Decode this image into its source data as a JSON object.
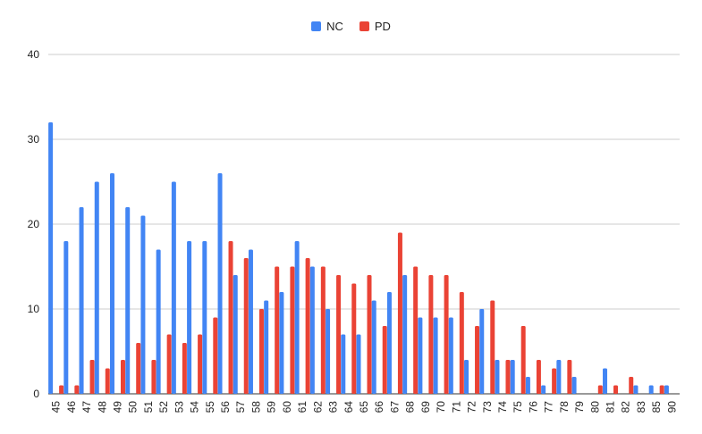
{
  "colors": {
    "NC": "#4285f4",
    "PD": "#ea4335",
    "grid": "#cccccc",
    "text": "#222222"
  },
  "chart_data": {
    "type": "bar",
    "title": "",
    "xlabel": "",
    "ylabel": "",
    "ylim": [
      0,
      40
    ],
    "yticks": [
      0,
      10,
      20,
      30,
      40
    ],
    "grid": true,
    "legend_position": "top-center",
    "categories": [
      "45",
      "46",
      "47",
      "48",
      "49",
      "50",
      "51",
      "52",
      "53",
      "54",
      "55",
      "56",
      "57",
      "58",
      "59",
      "60",
      "61",
      "62",
      "63",
      "64",
      "65",
      "66",
      "67",
      "68",
      "69",
      "70",
      "71",
      "72",
      "73",
      "74",
      "75",
      "76",
      "77",
      "78",
      "79",
      "80",
      "81",
      "82",
      "83",
      "85",
      "90"
    ],
    "series": [
      {
        "name": "NC",
        "values": [
          32,
          18,
          22,
          25,
          26,
          22,
          21,
          17,
          25,
          18,
          18,
          26,
          14,
          17,
          11,
          12,
          18,
          15,
          10,
          7,
          7,
          11,
          12,
          14,
          9,
          9,
          9,
          4,
          10,
          4,
          4,
          2,
          1,
          4,
          2,
          0,
          3,
          0,
          1,
          1,
          1
        ]
      },
      {
        "name": "PD",
        "values": [
          1,
          1,
          4,
          3,
          4,
          6,
          4,
          7,
          6,
          7,
          9,
          18,
          16,
          10,
          15,
          15,
          16,
          15,
          14,
          13,
          14,
          8,
          19,
          15,
          14,
          14,
          12,
          8,
          11,
          4,
          8,
          4,
          3,
          4,
          0,
          1,
          1,
          2,
          0,
          1,
          0
        ]
      }
    ]
  }
}
